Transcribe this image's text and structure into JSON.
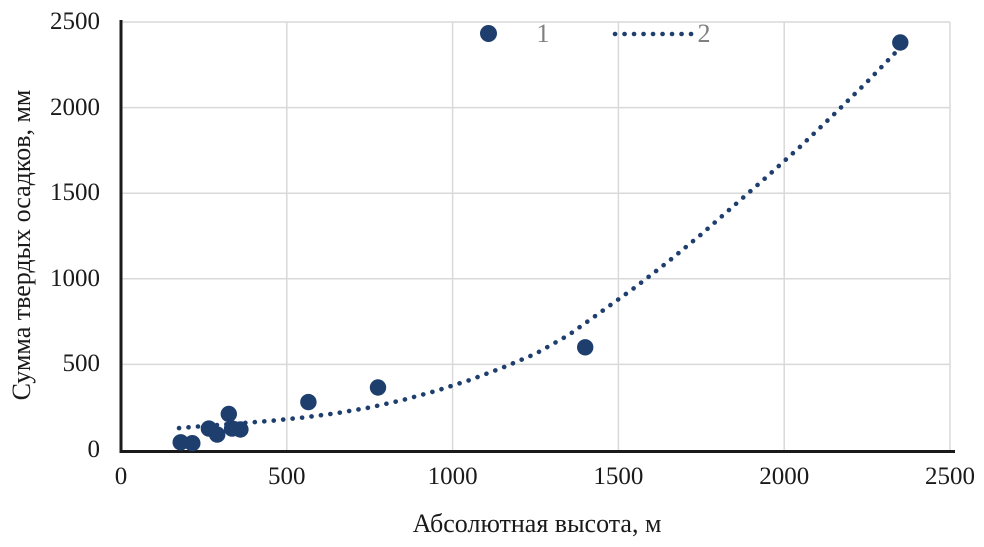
{
  "figure": {
    "background": "#ffffff",
    "accent_color": "#1e3e6e",
    "grid_color": "#d9d9d9",
    "axis_color": "#1a1a1a",
    "tick_label_color": "#1a1a1a",
    "legend_text_color": "#808080"
  },
  "chart_data": {
    "type": "scatter",
    "title": "",
    "xlabel": "Абсолютная высота, м",
    "ylabel": "Сумма твердых осадков, мм",
    "xlim": [
      0,
      2500
    ],
    "ylim": [
      0,
      2500
    ],
    "x_ticks": [
      "0",
      "500",
      "1000",
      "1500",
      "2000",
      "2500"
    ],
    "y_ticks": [
      "0",
      "500",
      "1000",
      "1500",
      "2000",
      "2500"
    ],
    "grid": true,
    "legend": {
      "position": "top-center",
      "entries": [
        {
          "label": "1",
          "marker": "filled-circle"
        },
        {
          "label": "2",
          "marker": "dotted-line"
        }
      ]
    },
    "series": [
      {
        "name": "1",
        "type": "scatter",
        "marker": "circle",
        "color": "#1e3e6e",
        "points": [
          [
            180,
            45
          ],
          [
            215,
            40
          ],
          [
            265,
            125
          ],
          [
            290,
            90
          ],
          [
            325,
            210
          ],
          [
            335,
            125
          ],
          [
            360,
            120
          ],
          [
            565,
            280
          ],
          [
            775,
            365
          ],
          [
            1400,
            600
          ],
          [
            2350,
            2380
          ]
        ]
      },
      {
        "name": "2",
        "type": "trendline-dotted",
        "color": "#1e3e6e",
        "points": [
          [
            175,
            128
          ],
          [
            250,
            140
          ],
          [
            350,
            155
          ],
          [
            450,
            170
          ],
          [
            550,
            190
          ],
          [
            650,
            215
          ],
          [
            750,
            248
          ],
          [
            850,
            292
          ],
          [
            950,
            345
          ],
          [
            1050,
            408
          ],
          [
            1150,
            480
          ],
          [
            1250,
            562
          ],
          [
            1350,
            672
          ],
          [
            1450,
            810
          ],
          [
            1550,
            950
          ],
          [
            1650,
            1100
          ],
          [
            1750,
            1260
          ],
          [
            1850,
            1430
          ],
          [
            1950,
            1600
          ],
          [
            2050,
            1775
          ],
          [
            2150,
            1960
          ],
          [
            2250,
            2150
          ],
          [
            2340,
            2330
          ],
          [
            2365,
            2380
          ]
        ]
      }
    ]
  }
}
